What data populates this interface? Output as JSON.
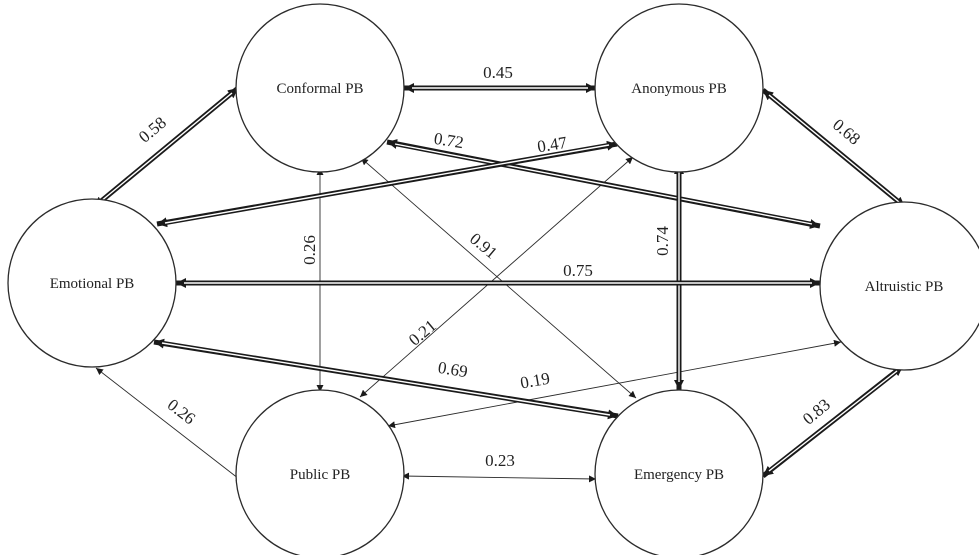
{
  "nodes": {
    "conformal": "Conformal PB",
    "anonymous": "Anonymous PB",
    "emotional": "Emotional PB",
    "altruistic": "Altruistic PB",
    "public": "Public PB",
    "emergency": "Emergency PB"
  },
  "edges": {
    "conformal_anonymous": "0.45",
    "conformal_emotional": "0.58",
    "anonymous_altruistic": "0.68",
    "conformal_altruistic": "0.72",
    "anonymous_emotional": "0.47",
    "conformal_public": "0.26",
    "conformal_emergency": "0.91",
    "anonymous_emergency": "0.74",
    "emotional_altruistic": "0.75",
    "anonymous_public": "0.21",
    "emotional_emergency": "0.69",
    "altruistic_public": "0.19",
    "emotional_public": "0.26",
    "public_emergency": "0.23",
    "altruistic_emergency": "0.83"
  }
}
